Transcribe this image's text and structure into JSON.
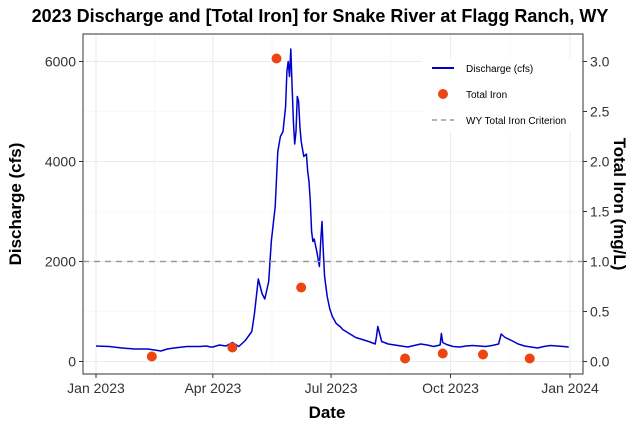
{
  "chart_data": {
    "type": "line",
    "title": "2023 Discharge and [Total Iron] for Snake River at Flagg Ranch, WY",
    "xlabel": "Date",
    "ylabel": "Discharge (cfs)",
    "y2label": "Total Iron (mg/L)",
    "xlim_days": [
      -10,
      375
    ],
    "ylim": [
      -250,
      6550
    ],
    "y2lim": [
      -0.125,
      3.275
    ],
    "grid": true,
    "legend_position": "top-right",
    "x_ticks": [
      {
        "day": 0,
        "label": "Jan 2023"
      },
      {
        "day": 90,
        "label": "Apr 2023"
      },
      {
        "day": 181,
        "label": "Jul 2023"
      },
      {
        "day": 273,
        "label": "Oct 2023"
      },
      {
        "day": 365,
        "label": "Jan 2024"
      }
    ],
    "y_ticks": [
      {
        "value": 0,
        "label": "0"
      },
      {
        "value": 2000,
        "label": "2000"
      },
      {
        "value": 4000,
        "label": "4000"
      },
      {
        "value": 6000,
        "label": "6000"
      }
    ],
    "y2_ticks": [
      {
        "value": 0.0,
        "label": "0.0"
      },
      {
        "value": 0.5,
        "label": "0.5"
      },
      {
        "value": 1.0,
        "label": "1.0"
      },
      {
        "value": 1.5,
        "label": "1.5"
      },
      {
        "value": 2.0,
        "label": "2.0"
      },
      {
        "value": 2.5,
        "label": "2.5"
      },
      {
        "value": 3.0,
        "label": "3.0"
      }
    ],
    "series": [
      {
        "name": "Discharge (cfs)",
        "color": "#0000cc",
        "axis": "left",
        "x": [
          0,
          10,
          20,
          30,
          40,
          45,
          50,
          55,
          60,
          70,
          80,
          85,
          88,
          90,
          95,
          100,
          105,
          110,
          115,
          120,
          122,
          125,
          128,
          130,
          133,
          135,
          138,
          140,
          142,
          144,
          146,
          147,
          148,
          149,
          150,
          151,
          152,
          153,
          154,
          155,
          156,
          157,
          158,
          160,
          162,
          163,
          164,
          165,
          166,
          167,
          168,
          170,
          172,
          173,
          174,
          175,
          176,
          178,
          180,
          182,
          185,
          188,
          190,
          195,
          200,
          205,
          210,
          215,
          216,
          217,
          220,
          225,
          230,
          235,
          240,
          245,
          250,
          255,
          260,
          265,
          266,
          267,
          270,
          275,
          280,
          285,
          290,
          295,
          300,
          305,
          310,
          312,
          315,
          320,
          325,
          330,
          335,
          340,
          345,
          350,
          355,
          360,
          364
        ],
        "y": [
          310,
          300,
          270,
          250,
          250,
          230,
          210,
          250,
          270,
          300,
          300,
          310,
          290,
          290,
          330,
          310,
          380,
          300,
          420,
          600,
          950,
          1650,
          1350,
          1250,
          1600,
          2400,
          3100,
          4200,
          4500,
          4600,
          5100,
          5800,
          6000,
          5700,
          6250,
          5500,
          4800,
          4350,
          4600,
          5300,
          5200,
          4700,
          4400,
          4100,
          4150,
          3800,
          3600,
          3200,
          2600,
          2400,
          2450,
          2200,
          1900,
          2400,
          2800,
          2200,
          1700,
          1300,
          1050,
          900,
          760,
          700,
          640,
          560,
          480,
          440,
          400,
          350,
          500,
          700,
          400,
          350,
          330,
          310,
          290,
          320,
          350,
          330,
          300,
          330,
          560,
          380,
          340,
          300,
          290,
          310,
          320,
          310,
          300,
          320,
          350,
          550,
          480,
          420,
          350,
          310,
          290,
          270,
          300,
          320,
          310,
          300,
          290
        ]
      },
      {
        "name": "Total Iron",
        "type": "scatter",
        "color": "#ee4411",
        "axis": "right",
        "x": [
          43,
          105,
          139,
          158,
          238,
          267,
          298,
          334
        ],
        "y": [
          0.05,
          0.14,
          3.03,
          0.74,
          0.03,
          0.08,
          0.07,
          0.03
        ]
      },
      {
        "name": "WY Total Iron Criterion",
        "type": "hline",
        "color": "#999999",
        "axis": "right",
        "value": 1.0
      }
    ]
  }
}
